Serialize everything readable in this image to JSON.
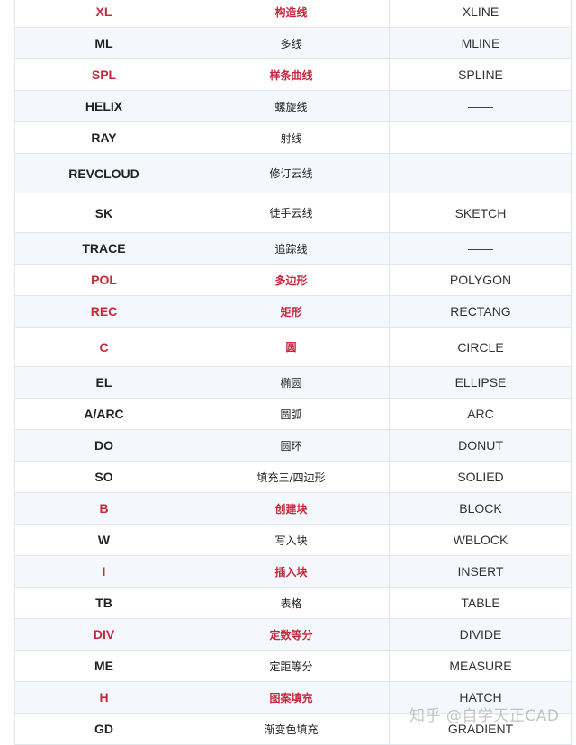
{
  "accent_color": "#c8283c",
  "rows": [
    {
      "cmd": "XL",
      "name": "构造线",
      "full": "XLINE",
      "highlight": true
    },
    {
      "cmd": "ML",
      "name": "多线",
      "full": "MLINE",
      "highlight": false
    },
    {
      "cmd": "SPL",
      "name": "样条曲线",
      "full": "SPLINE",
      "highlight": true
    },
    {
      "cmd": "HELIX",
      "name": "螺旋线",
      "full": "——",
      "highlight": false
    },
    {
      "cmd": "RAY",
      "name": "射线",
      "full": "——",
      "highlight": false
    },
    {
      "cmd": "REVCLOUD",
      "name": "修订云线",
      "full": "——",
      "highlight": false
    },
    {
      "cmd": "SK",
      "name": "徒手云线",
      "full": "SKETCH",
      "highlight": false
    },
    {
      "cmd": "TRACE",
      "name": "追踪线",
      "full": "——",
      "highlight": false
    },
    {
      "cmd": "POL",
      "name": "多边形",
      "full": "POLYGON",
      "highlight": true
    },
    {
      "cmd": "REC",
      "name": "矩形",
      "full": "RECTANG",
      "highlight": true
    },
    {
      "cmd": "C",
      "name": "圆",
      "full": "CIRCLE",
      "highlight": true
    },
    {
      "cmd": "EL",
      "name": "椭圆",
      "full": "ELLIPSE",
      "highlight": false
    },
    {
      "cmd": "A/ARC",
      "name": "圆弧",
      "full": "ARC",
      "highlight": false
    },
    {
      "cmd": "DO",
      "name": "圆环",
      "full": "DONUT",
      "highlight": false
    },
    {
      "cmd": "SO",
      "name": "填充三/四边形",
      "full": "SOLIED",
      "highlight": false
    },
    {
      "cmd": "B",
      "name": "创建块",
      "full": "BLOCK",
      "highlight": true
    },
    {
      "cmd": "W",
      "name": "写入块",
      "full": "WBLOCK",
      "highlight": false
    },
    {
      "cmd": "I",
      "name": "插入块",
      "full": "INSERT",
      "highlight": true
    },
    {
      "cmd": "TB",
      "name": "表格",
      "full": "TABLE",
      "highlight": false
    },
    {
      "cmd": "DIV",
      "name": "定数等分",
      "full": "DIVIDE",
      "highlight": true
    },
    {
      "cmd": "ME",
      "name": "定距等分",
      "full": "MEASURE",
      "highlight": false
    },
    {
      "cmd": "H",
      "name": "图案填充",
      "full": "HATCH",
      "highlight": true
    },
    {
      "cmd": "GD",
      "name": "渐变色填充",
      "full": "GRADIENT",
      "highlight": false
    }
  ],
  "watermark": "知乎 @自学天正CAD"
}
